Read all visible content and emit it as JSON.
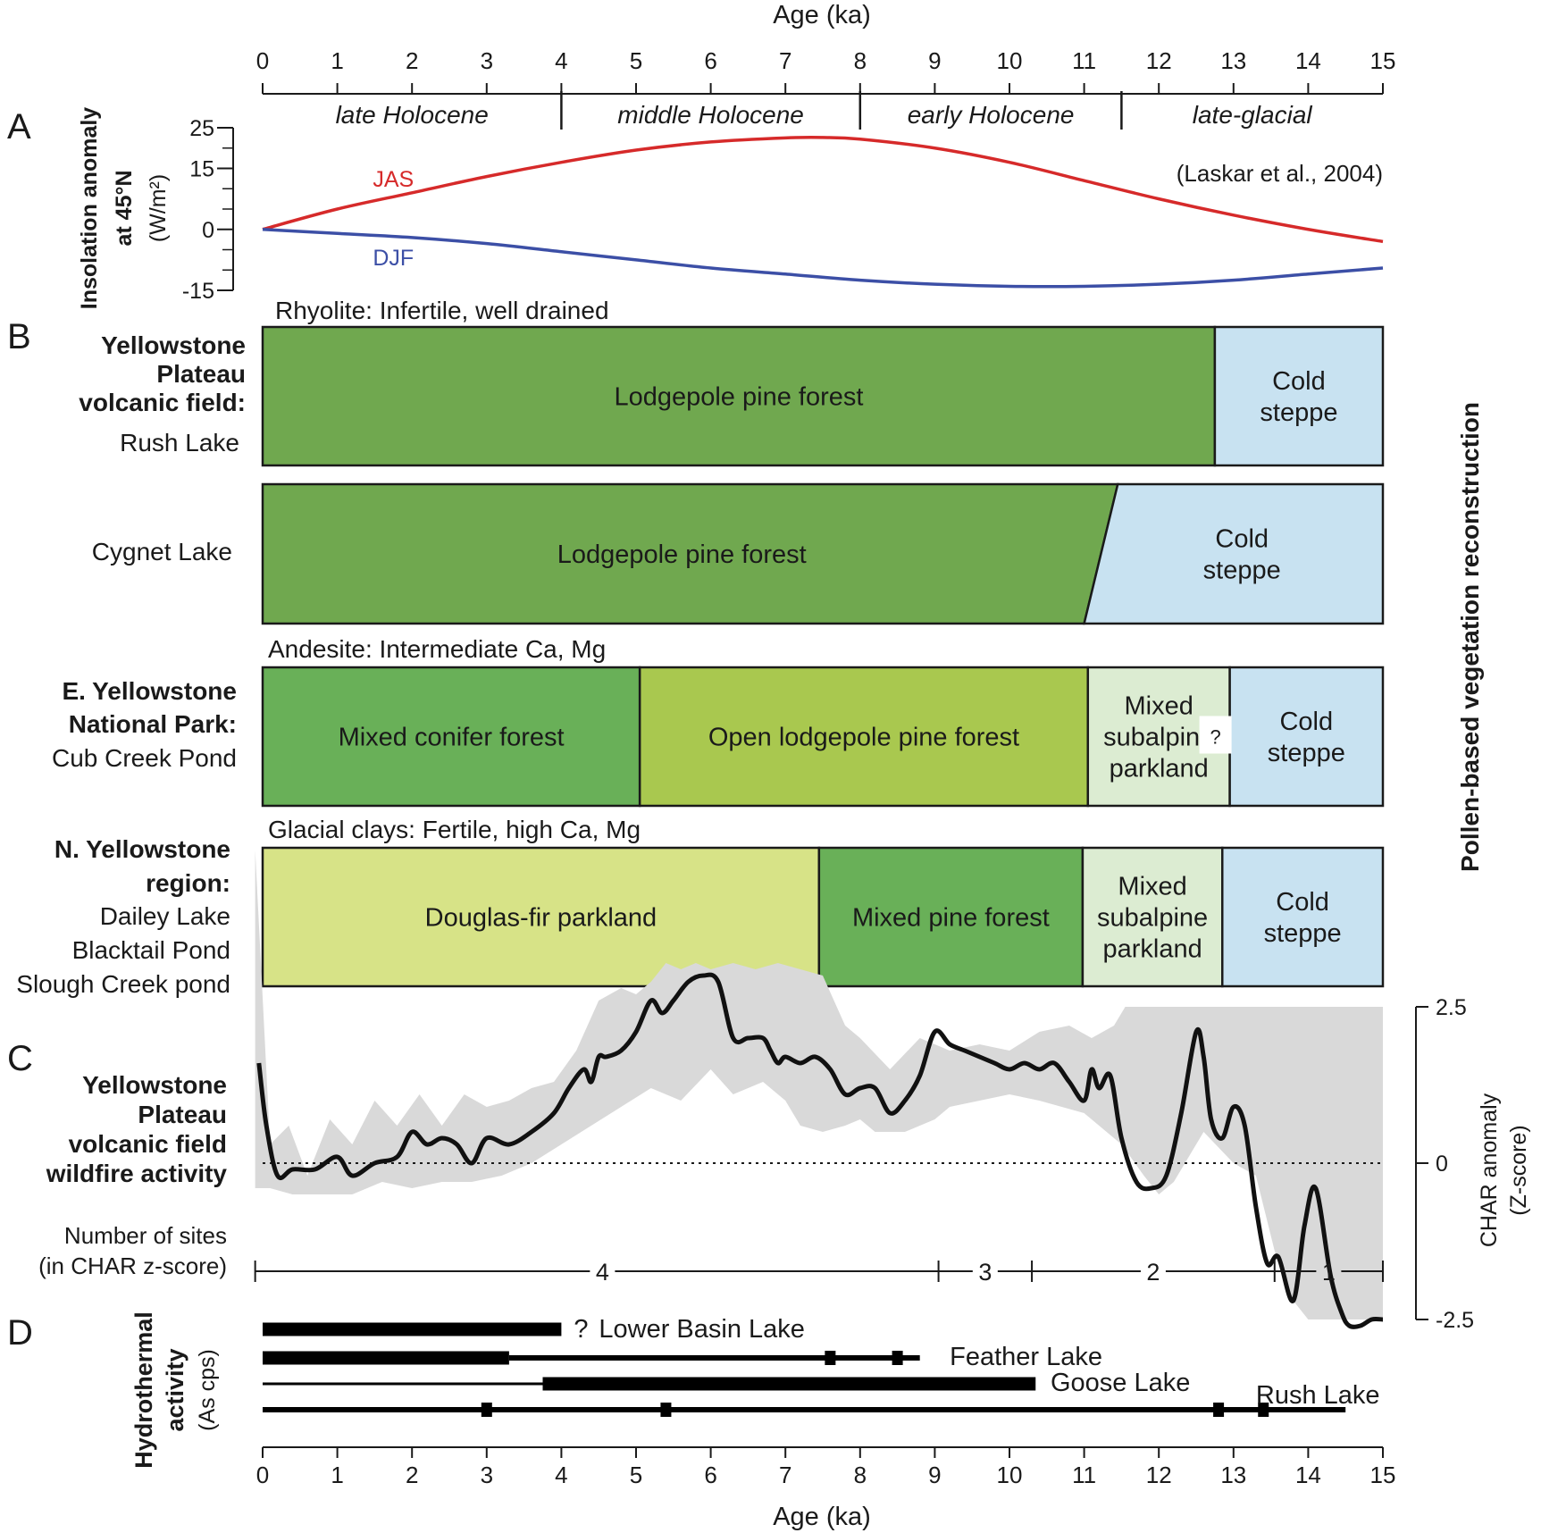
{
  "chart_data": {
    "type": "composite",
    "age_axis": {
      "label": "Age (ka)",
      "ticks": [
        "0",
        "1",
        "2",
        "3",
        "4",
        "5",
        "6",
        "7",
        "8",
        "9",
        "10",
        "11",
        "12",
        "13",
        "14",
        "15"
      ],
      "range": [
        0,
        15
      ]
    },
    "panel_labels": [
      "A",
      "B",
      "C",
      "D"
    ],
    "periods": [
      {
        "label": "late Holocene",
        "from": 0,
        "to": 4
      },
      {
        "label": "middle Holocene",
        "from": 4,
        "to": 8
      },
      {
        "label": "early Holocene",
        "from": 8,
        "to": 11.5
      },
      {
        "label": "late-glacial",
        "from": 11.5,
        "to": 15
      }
    ],
    "insolation": {
      "ylabel_line1": "Insolation anomaly",
      "ylabel_line2": "at 45°N",
      "units": "(W/m²)",
      "yticks": [
        "25",
        "15",
        "0",
        "-15"
      ],
      "ylim": [
        -15,
        25
      ],
      "citation": "(Laskar et al., 2004)",
      "series": [
        {
          "name": "JAS",
          "color": "#d62a2a",
          "x": [
            0,
            1,
            2,
            3,
            4,
            5,
            6,
            7,
            7.5,
            8,
            9,
            10,
            11,
            12,
            13,
            14,
            15
          ],
          "y": [
            0,
            5,
            9,
            13,
            16.5,
            19.5,
            21.5,
            22.5,
            22.6,
            22.2,
            20,
            16.5,
            12,
            7.5,
            3.5,
            0,
            -3
          ]
        },
        {
          "name": "DJF",
          "color": "#3c4fa6",
          "x": [
            0,
            1,
            2,
            3,
            4,
            5,
            6,
            7,
            8,
            9,
            10,
            11,
            12,
            13,
            14,
            15
          ],
          "y": [
            0,
            -1,
            -2,
            -3.5,
            -5.5,
            -7.5,
            -9.5,
            -11,
            -12.5,
            -13.5,
            -14,
            -14,
            -13.5,
            -12.5,
            -11,
            -9.5
          ]
        }
      ]
    },
    "vegetation": {
      "side_label": "Pollen-based vegetation reconstruction",
      "groups": [
        {
          "substrate": "Rhyolite: Infertile, well drained",
          "region_lines": [
            "Yellowstone",
            "Plateau",
            "volcanic field:"
          ],
          "sites": [
            {
              "site_lines": [
                "Rush Lake"
              ],
              "zones": [
                {
                  "label_lines": [
                    "Lodgepole pine forest"
                  ],
                  "from": 0,
                  "to": 12.75,
                  "color": "#70a84f"
                },
                {
                  "label_lines": [
                    "Cold",
                    "steppe"
                  ],
                  "from": 12.75,
                  "to": 15,
                  "color": "#c8e2f1"
                }
              ]
            },
            {
              "site_lines": [
                "Cygnet Lake"
              ],
              "zones": [
                {
                  "label_lines": [
                    "Lodgepole pine forest"
                  ],
                  "from": 0,
                  "to_top": 11.45,
                  "to_bottom": 11.0,
                  "color": "#70a84f"
                },
                {
                  "label_lines": [
                    "Cold",
                    "steppe"
                  ],
                  "from_top": 11.45,
                  "from_bottom": 11.0,
                  "to": 15,
                  "color": "#c8e2f1"
                }
              ]
            }
          ]
        },
        {
          "substrate": "Andesite: Intermediate Ca, Mg",
          "region_lines": [
            "E. Yellowstone",
            "National Park:"
          ],
          "sites": [
            {
              "site_lines": [
                "Cub Creek Pond"
              ],
              "zones": [
                {
                  "label_lines": [
                    "Mixed conifer forest"
                  ],
                  "from": 0,
                  "to": 5.05,
                  "color": "#69b058"
                },
                {
                  "label_lines": [
                    "Open lodgepole pine forest"
                  ],
                  "from": 5.05,
                  "to": 11.05,
                  "color": "#a9c84f"
                },
                {
                  "label_lines": [
                    "Mixed",
                    "subalpine",
                    "parkland"
                  ],
                  "from": 11.05,
                  "to": 12.95,
                  "color": "#dcecd2"
                },
                {
                  "label_lines": [
                    "Cold",
                    "steppe"
                  ],
                  "from": 12.95,
                  "to": 15,
                  "color": "#c8e2f1"
                }
              ],
              "note": "?"
            }
          ]
        },
        {
          "substrate": "Glacial clays: Fertile, high Ca, Mg",
          "region_lines": [
            "N. Yellowstone",
            "region:"
          ],
          "sites": [
            {
              "site_lines": [
                "Dailey Lake",
                "Blacktail Pond",
                "Slough Creek pond"
              ],
              "zones": [
                {
                  "label_lines": [
                    "Douglas-fir parkland"
                  ],
                  "from": 0,
                  "to": 7.45,
                  "color": "#d7e387"
                },
                {
                  "label_lines": [
                    "Mixed pine forest"
                  ],
                  "from": 7.45,
                  "to": 10.98,
                  "color": "#69b058"
                },
                {
                  "label_lines": [
                    "Mixed",
                    "subalpine",
                    "parkland"
                  ],
                  "from": 10.98,
                  "to": 12.85,
                  "color": "#dcecd2"
                },
                {
                  "label_lines": [
                    "Cold",
                    "steppe"
                  ],
                  "from": 12.85,
                  "to": 15,
                  "color": "#c8e2f1"
                }
              ]
            }
          ]
        }
      ]
    },
    "wildfire": {
      "title_lines": [
        "Yellowstone",
        "Plateau",
        "volcanic field",
        "wildfire activity"
      ],
      "ylabel_line1": "CHAR anomaly",
      "ylabel_line2": "(Z-score)",
      "yticks": [
        "2.5",
        "0",
        "-2.5"
      ],
      "ylim": [
        -2.5,
        2.5
      ],
      "series": {
        "name": "CHAR z-score",
        "x": [
          -0.05,
          0.05,
          0.2,
          0.4,
          0.7,
          1.0,
          1.2,
          1.5,
          1.8,
          2.0,
          2.2,
          2.4,
          2.6,
          2.8,
          3.0,
          3.3,
          3.6,
          3.9,
          4.1,
          4.3,
          4.4,
          4.5,
          4.6,
          4.8,
          5.0,
          5.2,
          5.35,
          5.5,
          5.7,
          5.9,
          6.1,
          6.3,
          6.5,
          6.7,
          6.8,
          6.9,
          7.0,
          7.2,
          7.4,
          7.6,
          7.8,
          8.0,
          8.2,
          8.4,
          8.6,
          8.8,
          9.0,
          9.2,
          9.4,
          9.6,
          9.8,
          10.0,
          10.2,
          10.4,
          10.6,
          10.8,
          11.0,
          11.1,
          11.2,
          11.35,
          11.5,
          11.7,
          11.9,
          12.1,
          12.3,
          12.5,
          12.6,
          12.7,
          12.85,
          13.0,
          13.15,
          13.3,
          13.45,
          13.6,
          13.8,
          13.95,
          14.1,
          14.3,
          14.45,
          14.55,
          14.7,
          14.85,
          15.0
        ],
        "y": [
          1.6,
          0.6,
          -0.2,
          -0.1,
          -0.1,
          0.1,
          -0.2,
          0.0,
          0.1,
          0.5,
          0.3,
          0.4,
          0.3,
          0.0,
          0.4,
          0.3,
          0.5,
          0.8,
          1.2,
          1.5,
          1.3,
          1.7,
          1.7,
          1.8,
          2.1,
          2.6,
          2.4,
          2.6,
          2.9,
          3.0,
          2.9,
          2.0,
          2.0,
          2.0,
          1.8,
          1.6,
          1.7,
          1.6,
          1.7,
          1.5,
          1.1,
          1.2,
          1.2,
          0.8,
          1.0,
          1.4,
          2.1,
          1.9,
          1.8,
          1.7,
          1.6,
          1.5,
          1.6,
          1.5,
          1.6,
          1.3,
          1.0,
          1.5,
          1.2,
          1.4,
          0.4,
          -0.3,
          -0.4,
          -0.2,
          0.8,
          2.1,
          1.7,
          0.7,
          0.4,
          0.9,
          0.6,
          -0.7,
          -1.6,
          -1.5,
          -2.2,
          -1.0,
          -0.4,
          -1.8,
          -2.4,
          -2.6,
          -2.6,
          -2.5,
          -2.5
        ]
      },
      "ci_upper": {
        "x": [
          -0.1,
          0.1,
          0.35,
          0.6,
          0.9,
          1.2,
          1.5,
          1.8,
          2.1,
          2.4,
          2.7,
          3.0,
          3.3,
          3.6,
          3.9,
          4.2,
          4.5,
          4.8,
          5.0,
          5.2,
          5.4,
          5.6,
          5.8,
          6.0,
          6.3,
          6.6,
          6.9,
          7.2,
          7.5,
          7.8,
          8.0,
          8.4,
          8.8,
          9.2,
          9.6,
          10.0,
          10.4,
          10.8,
          11.1,
          11.4,
          11.55,
          15.0
        ],
        "y": [
          5.0,
          0.3,
          0.6,
          -0.2,
          0.7,
          0.3,
          1.0,
          0.6,
          1.1,
          0.6,
          1.1,
          0.9,
          1.0,
          1.2,
          1.3,
          1.8,
          2.6,
          2.8,
          2.7,
          2.9,
          3.2,
          3.1,
          3.2,
          3.1,
          3.2,
          3.1,
          3.2,
          3.1,
          3.0,
          2.2,
          2.0,
          1.5,
          2.0,
          1.8,
          1.9,
          1.8,
          2.1,
          2.2,
          2.0,
          2.2,
          2.5,
          2.5
        ]
      },
      "ci_lower": {
        "x": [
          15.0,
          14.6,
          14.3,
          14.0,
          13.8,
          13.55,
          13.3,
          13.0,
          12.6,
          12.2,
          12.0,
          11.8,
          11.5,
          11.2,
          11.0,
          10.7,
          10.4,
          10.0,
          9.6,
          9.2,
          9.0,
          8.6,
          8.2,
          8.0,
          7.8,
          7.5,
          7.2,
          7.0,
          6.7,
          6.3,
          6.0,
          5.6,
          5.2,
          4.8,
          4.4,
          4.0,
          3.6,
          3.2,
          2.8,
          2.4,
          2.0,
          1.6,
          1.2,
          0.8,
          0.4,
          0.1,
          -0.1
        ],
        "y": [
          -2.5,
          -2.5,
          -2.5,
          -2.5,
          -2.2,
          -1.4,
          -0.2,
          0.0,
          0.5,
          -0.3,
          -0.5,
          -0.2,
          0.3,
          0.6,
          0.8,
          0.9,
          1.0,
          1.1,
          1.0,
          0.9,
          0.7,
          0.5,
          0.5,
          0.7,
          0.6,
          0.5,
          0.6,
          1.0,
          1.3,
          1.1,
          1.5,
          1.0,
          1.2,
          0.9,
          0.6,
          0.3,
          0.0,
          -0.2,
          -0.3,
          -0.3,
          -0.4,
          -0.3,
          -0.5,
          -0.5,
          -0.5,
          -0.4,
          -0.4
        ]
      },
      "sites_label_lines": [
        "Number of sites",
        "(in CHAR z-score)"
      ],
      "site_count_breaks": [
        -0.1,
        9.05,
        10.3,
        13.55,
        15.0
      ],
      "site_counts": [
        "4",
        "3",
        "2",
        "1"
      ]
    },
    "hydrothermal": {
      "ylabel_line1": "Hydrothermal",
      "ylabel_line2": "activity",
      "ylabel_line3": "(As cps)",
      "lakes": [
        {
          "name": "Lower Basin Lake",
          "question": "?",
          "segments": [
            {
              "from": 0,
              "to": 4.0,
              "weight": "thick"
            }
          ],
          "markers": []
        },
        {
          "name": "Feather Lake",
          "segments": [
            {
              "from": 0,
              "to": 3.3,
              "weight": "thick"
            },
            {
              "from": 3.3,
              "to": 8.8,
              "weight": "medium"
            }
          ],
          "markers": [
            7.6,
            8.5
          ]
        },
        {
          "name": "Goose Lake",
          "segments": [
            {
              "from": 0,
              "to": 3.75,
              "weight": "thin"
            },
            {
              "from": 3.75,
              "to": 10.35,
              "weight": "thick"
            }
          ],
          "markers": []
        },
        {
          "name": "Rush Lake",
          "segments": [
            {
              "from": 0,
              "to": 14.5,
              "weight": "medium"
            }
          ],
          "markers": [
            3.0,
            5.4,
            12.8,
            13.4
          ]
        }
      ]
    }
  }
}
